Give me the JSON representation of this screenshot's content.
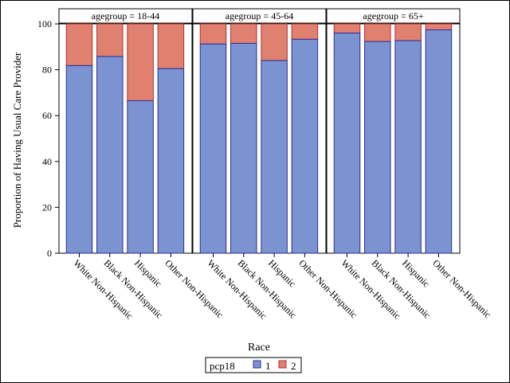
{
  "chart_data": {
    "type": "bar",
    "stacked": true,
    "ylabel": "Proportion of Having Usual Care Provider",
    "xlabel": "Race",
    "ylim": [
      0,
      100
    ],
    "yticks": [
      0,
      20,
      40,
      60,
      80,
      100
    ],
    "grid": false,
    "legend": {
      "title": "pcp18",
      "position": "bottom-center",
      "entries": [
        "1",
        "2"
      ]
    },
    "colors": {
      "1": "#7b93d1",
      "2": "#e0806f",
      "outline_1": "#2c2c9a",
      "outline_2": "#b03030",
      "axis": "#000000"
    },
    "panels": [
      {
        "label": "agegroup = 18-44",
        "categories": [
          "White Non-Hispanic",
          "Black Non-Hispanic",
          "Hispanic",
          "Other Non-Hispanic"
        ],
        "series": [
          {
            "name": "1",
            "values": [
              81.8,
              85.8,
              66.5,
              80.5
            ]
          },
          {
            "name": "2",
            "values": [
              18.2,
              14.2,
              33.5,
              19.5
            ]
          }
        ]
      },
      {
        "label": "agegroup = 45-64",
        "categories": [
          "White Non-Hispanic",
          "Black Non-Hispanic",
          "Hispanic",
          "Other Non-Hispanic"
        ],
        "series": [
          {
            "name": "1",
            "values": [
              91.2,
              91.5,
              84.0,
              93.3
            ]
          },
          {
            "name": "2",
            "values": [
              8.8,
              8.5,
              16.0,
              6.7
            ]
          }
        ]
      },
      {
        "label": "agegroup = 65+",
        "categories": [
          "White Non-Hispanic",
          "Black Non-Hispanic",
          "Hispanic",
          "Other Non-Hispanic"
        ],
        "series": [
          {
            "name": "1",
            "values": [
              96.0,
              92.3,
              92.7,
              97.4
            ]
          },
          {
            "name": "2",
            "values": [
              4.0,
              7.7,
              7.3,
              2.6
            ]
          }
        ]
      }
    ]
  }
}
